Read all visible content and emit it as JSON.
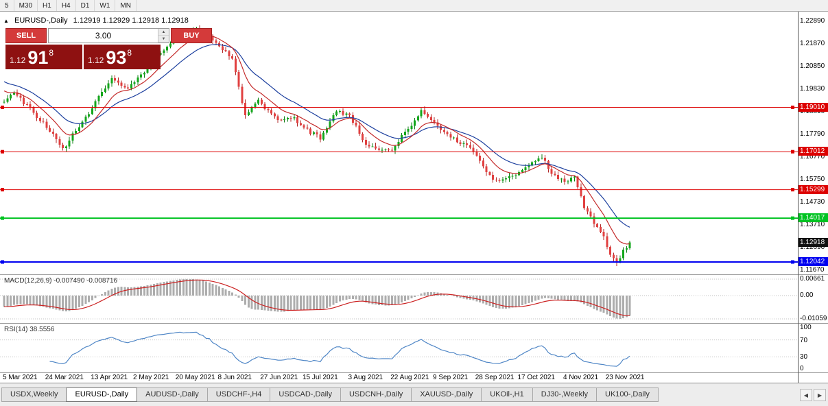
{
  "icons": {
    "collapse": "▲",
    "spin_up": "▲",
    "spin_down": "▼",
    "scroll_left": "◀",
    "scroll_right": "▶"
  },
  "colors": {
    "candle_up": "#14a71c",
    "wick_up": "#0c7d13",
    "candle_down": "#e14040",
    "wick_down": "#b22828",
    "ma_fast": "#c42b2b",
    "ma_slow": "#1c3f9e",
    "macd_hist": "#adadad",
    "macd_signal": "#cc2222",
    "rsi_line": "#4f86c6",
    "line_red": "#dd0000",
    "line_green": "#00c322",
    "line_blue": "#0000f0",
    "current_tag": "#101010",
    "trade_button": "#d43a3a",
    "trade_price_box": "#8e1111"
  },
  "toolbar": {
    "timeframes": [
      "5",
      "M30",
      "H1",
      "H4",
      "D1",
      "W1",
      "MN"
    ]
  },
  "chart": {
    "header_symbol": "EURUSD-,Daily",
    "header_ohlc": "1.12919 1.12929 1.12918 1.12918"
  },
  "trade_panel": {
    "sell_label": "SELL",
    "buy_label": "BUY",
    "volume_value": "3.00",
    "sell_price_prefix": "1.12",
    "sell_price_main": "91",
    "sell_price_sup": "8",
    "buy_price_prefix": "1.12",
    "buy_price_main": "93",
    "buy_price_sup": "8"
  },
  "chart_data": {
    "type": "candlestick",
    "title": "EURUSD-,Daily",
    "y_top": 1.2289,
    "y_bottom": 1.1167,
    "num_candles": 193,
    "last_close": 1.12918,
    "y_ticks": [
      "1.22890",
      "1.21870",
      "1.20850",
      "1.19830",
      "1.18810",
      "1.17790",
      "1.16770",
      "1.15750",
      "1.14730",
      "1.13710",
      "1.12690",
      "1.11670"
    ],
    "horizontal_lines": [
      {
        "price": 1.1901,
        "label": "1.19010",
        "color": "#dd0000",
        "width": 1
      },
      {
        "price": 1.17012,
        "label": "1.17012",
        "color": "#dd0000",
        "width": 1
      },
      {
        "price": 1.15299,
        "label": "1.15299",
        "color": "#dd0000",
        "width": 1
      },
      {
        "price": 1.14017,
        "label": "1.14017",
        "color": "#00c322",
        "width": 2
      },
      {
        "price": 1.12042,
        "label": "1.12042",
        "color": "#0000f0",
        "width": 2
      }
    ],
    "current_price_tag": {
      "price": 1.12918,
      "label": "1.12918",
      "color": "#101010"
    },
    "price_path": [
      [
        0,
        1.1925
      ],
      [
        3,
        1.197
      ],
      [
        13,
        1.1815
      ],
      [
        18,
        1.1712
      ],
      [
        27,
        1.19
      ],
      [
        33,
        1.204
      ],
      [
        37,
        1.1985
      ],
      [
        40,
        1.2015
      ],
      [
        48,
        1.215
      ],
      [
        53,
        1.222
      ],
      [
        58,
        1.2255
      ],
      [
        62,
        1.223
      ],
      [
        66,
        1.218
      ],
      [
        70,
        1.212
      ],
      [
        72,
        1.199
      ],
      [
        74,
        1.1865
      ],
      [
        78,
        1.193
      ],
      [
        84,
        1.184
      ],
      [
        89,
        1.1855
      ],
      [
        92,
        1.1805
      ],
      [
        97,
        1.1765
      ],
      [
        102,
        1.1885
      ],
      [
        106,
        1.1865
      ],
      [
        111,
        1.1735
      ],
      [
        117,
        1.1705
      ],
      [
        119,
        1.17
      ],
      [
        123,
        1.179
      ],
      [
        128,
        1.188
      ],
      [
        132,
        1.1825
      ],
      [
        137,
        1.177
      ],
      [
        141,
        1.1735
      ],
      [
        145,
        1.169
      ],
      [
        148,
        1.16
      ],
      [
        152,
        1.1565
      ],
      [
        157,
        1.1595
      ],
      [
        161,
        1.164
      ],
      [
        165,
        1.1675
      ],
      [
        168,
        1.1605
      ],
      [
        172,
        1.1565
      ],
      [
        175,
        1.159
      ],
      [
        178,
        1.145
      ],
      [
        181,
        1.138
      ],
      [
        184,
        1.132
      ],
      [
        186,
        1.124
      ],
      [
        188,
        1.12
      ],
      [
        190,
        1.1255
      ],
      [
        192,
        1.12918
      ]
    ],
    "x_labels": [
      {
        "d": 0,
        "t": "5 Mar 2021"
      },
      {
        "d": 13,
        "t": "24 Mar 2021"
      },
      {
        "d": 27,
        "t": "13 Apr 2021"
      },
      {
        "d": 40,
        "t": "2 May 2021"
      },
      {
        "d": 53,
        "t": "20 May 2021"
      },
      {
        "d": 66,
        "t": "8 Jun 2021"
      },
      {
        "d": 79,
        "t": "27 Jun 2021"
      },
      {
        "d": 92,
        "t": "15 Jul 2021"
      },
      {
        "d": 106,
        "t": "3 Aug 2021"
      },
      {
        "d": 119,
        "t": "22 Aug 2021"
      },
      {
        "d": 132,
        "t": "9 Sep 2021"
      },
      {
        "d": 145,
        "t": "28 Sep 2021"
      },
      {
        "d": 158,
        "t": "17 Oct 2021"
      },
      {
        "d": 172,
        "t": "4 Nov 2021"
      },
      {
        "d": 185,
        "t": "23 Nov 2021"
      }
    ],
    "indicators": {
      "ma_fast_period": 10,
      "ma_slow_period": 21,
      "macd": {
        "fast": 12,
        "slow": 26,
        "signal": 9
      },
      "rsi_period": 14
    }
  },
  "macd_panel": {
    "label": "MACD(12,26,9) -0.007490 -0.008716",
    "axis_labels": [
      "0.00661",
      "0.00",
      "-0.01059"
    ]
  },
  "rsi_panel": {
    "label": "RSI(14) 38.5556",
    "axis_labels": [
      "100",
      "70",
      "30",
      "0"
    ],
    "levels": [
      70,
      30
    ]
  },
  "tabs": {
    "items": [
      {
        "label": "USDX,Weekly",
        "active": false
      },
      {
        "label": "EURUSD-,Daily",
        "active": true
      },
      {
        "label": "AUDUSD-,Daily",
        "active": false
      },
      {
        "label": "USDCHF-,H4",
        "active": false
      },
      {
        "label": "USDCAD-,Daily",
        "active": false
      },
      {
        "label": "USDCNH-,Daily",
        "active": false
      },
      {
        "label": "XAUUSD-,Daily",
        "active": false
      },
      {
        "label": "UKOil-,H1",
        "active": false
      },
      {
        "label": "DJ30-,Weekly",
        "active": false
      },
      {
        "label": "UK100-,Daily",
        "active": false
      }
    ]
  }
}
